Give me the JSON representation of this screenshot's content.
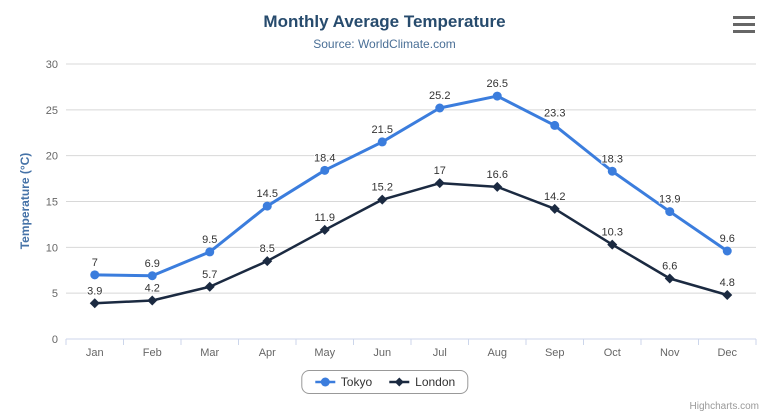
{
  "chart": {
    "title": "Monthly Average Temperature",
    "subtitle": "Source: WorldClimate.com",
    "credits": "Highcharts.com"
  },
  "chart_data": {
    "type": "line",
    "title": "Monthly Average Temperature",
    "subtitle": "Source: WorldClimate.com",
    "categories": [
      "Jan",
      "Feb",
      "Mar",
      "Apr",
      "May",
      "Jun",
      "Jul",
      "Aug",
      "Sep",
      "Oct",
      "Nov",
      "Dec"
    ],
    "series": [
      {
        "name": "Tokyo",
        "color": "#3b7ddd",
        "marker": "circle",
        "values": [
          7,
          6.9,
          9.5,
          14.5,
          18.4,
          21.5,
          25.2,
          26.5,
          23.3,
          18.3,
          13.9,
          9.6
        ]
      },
      {
        "name": "London",
        "color": "#1b2a41",
        "marker": "diamond",
        "values": [
          3.9,
          4.2,
          5.7,
          8.5,
          11.9,
          15.2,
          17,
          16.6,
          14.2,
          10.3,
          6.6,
          4.8
        ]
      }
    ],
    "xlabel": "",
    "ylabel": "Temperature (°C)",
    "ylim": [
      0,
      30
    ],
    "ytick_interval": 5,
    "grid": true,
    "legend_position": "bottom",
    "data_labels": true
  },
  "colors": {
    "title": "#274b6d",
    "subtitle": "#4a6f96",
    "axis_label": "#666666",
    "axis_title": "#4572a7",
    "gridline": "#d8d8d8",
    "axis_line": "#ccd6eb",
    "data_label": "#333333",
    "legend_text": "#333333",
    "credits": "#999999",
    "menu_icon": "#666666"
  }
}
